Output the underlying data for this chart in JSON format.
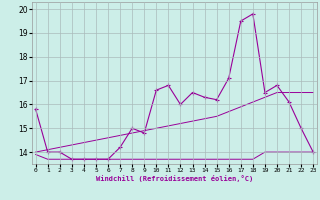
{
  "xlabel": "Windchill (Refroidissement éolien,°C)",
  "background_color": "#cceee8",
  "line_color": "#990099",
  "grid_color": "#aabbbb",
  "x_values": [
    0,
    1,
    2,
    3,
    4,
    5,
    6,
    7,
    8,
    9,
    10,
    11,
    12,
    13,
    14,
    15,
    16,
    17,
    18,
    19,
    20,
    21,
    22,
    23
  ],
  "y_main": [
    15.8,
    14.0,
    14.0,
    13.7,
    13.7,
    13.7,
    13.7,
    14.2,
    15.0,
    14.8,
    16.6,
    16.8,
    16.0,
    16.5,
    16.3,
    16.2,
    17.1,
    19.5,
    19.8,
    16.5,
    16.8,
    16.1,
    15.0,
    14.0
  ],
  "y_trend": [
    14.0,
    14.1,
    14.2,
    14.3,
    14.4,
    14.5,
    14.6,
    14.7,
    14.8,
    14.9,
    15.0,
    15.1,
    15.2,
    15.3,
    15.4,
    15.5,
    15.7,
    15.9,
    16.1,
    16.3,
    16.5,
    16.5,
    16.5,
    16.5
  ],
  "y_flat": [
    13.9,
    13.7,
    13.7,
    13.7,
    13.7,
    13.7,
    13.7,
    13.7,
    13.7,
    13.7,
    13.7,
    13.7,
    13.7,
    13.7,
    13.7,
    13.7,
    13.7,
    13.7,
    13.7,
    14.0,
    14.0,
    14.0,
    14.0,
    14.0
  ],
  "ylim": [
    13.5,
    20.3
  ],
  "xlim": [
    -0.3,
    23.3
  ],
  "yticks": [
    14,
    15,
    16,
    17,
    18,
    19,
    20
  ],
  "xticks": [
    0,
    1,
    2,
    3,
    4,
    5,
    6,
    7,
    8,
    9,
    10,
    11,
    12,
    13,
    14,
    15,
    16,
    17,
    18,
    19,
    20,
    21,
    22,
    23
  ]
}
